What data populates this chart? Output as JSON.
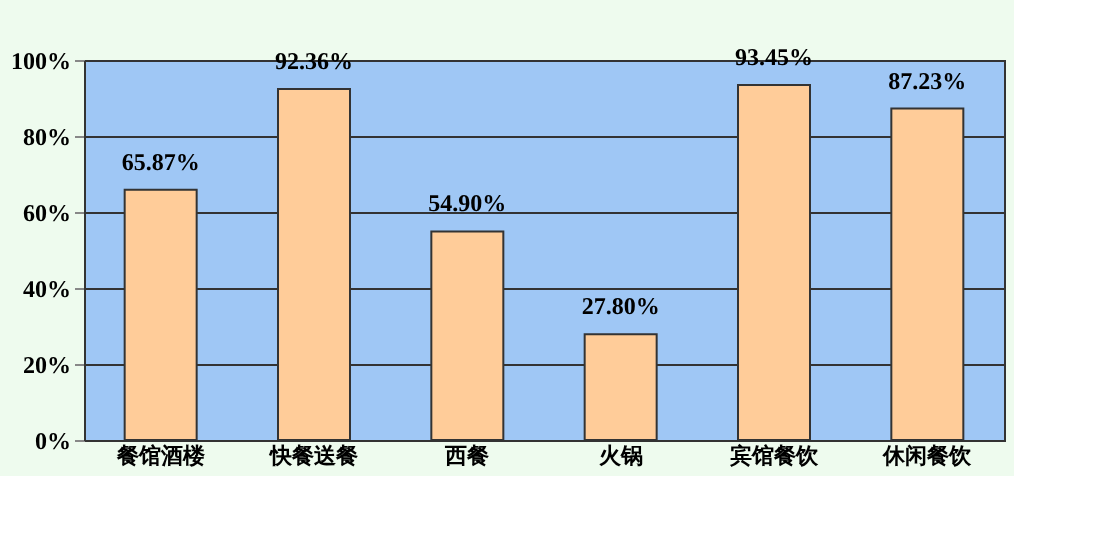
{
  "chart_data": {
    "type": "bar",
    "categories": [
      "餐馆酒楼",
      "快餐送餐",
      "西餐",
      "火锅",
      "宾馆餐饮",
      "休闲餐饮"
    ],
    "values": [
      65.87,
      92.36,
      54.9,
      27.8,
      93.45,
      87.23
    ],
    "value_labels": [
      "65.87%",
      "92.36%",
      "54.90%",
      "27.80%",
      "93.45%",
      "87.23%"
    ],
    "color": "#ffcc99",
    "ylim": [
      0,
      100
    ],
    "yticks": [
      {
        "value": 0,
        "label": "0%"
      },
      {
        "value": 20,
        "label": "20%"
      },
      {
        "value": 40,
        "label": "40%"
      },
      {
        "value": 60,
        "label": "60%"
      },
      {
        "value": 80,
        "label": "80%"
      },
      {
        "value": 100,
        "label": "100%"
      }
    ],
    "grid": "y"
  }
}
